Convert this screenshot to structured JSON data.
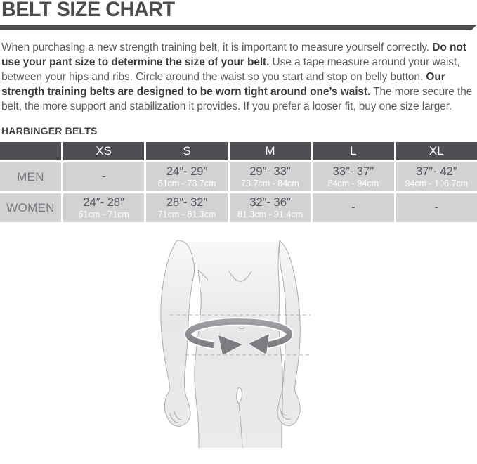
{
  "page": {
    "title": "BELT SIZE CHART"
  },
  "intro": {
    "segments": [
      {
        "bold": false,
        "text": "When purchasing a new strength training belt, it is important to measure yourself correctly. "
      },
      {
        "bold": true,
        "text": "Do not use your pant size to determine the size of your belt."
      },
      {
        "bold": false,
        "text": " Use a tape measure around your waist, between your hips and ribs. Circle around the waist so you start and stop on belly button. "
      },
      {
        "bold": true,
        "text": "Our strength training belts are designed to be worn tight around one’s waist."
      },
      {
        "bold": false,
        "text": " The more secure the belt, the more support and stabilization it provides. If you prefer a looser fit, buy one size larger."
      }
    ]
  },
  "section": {
    "heading": "HARBINGER BELTS"
  },
  "size_table": {
    "columns": [
      "",
      "XS",
      "S",
      "M",
      "L",
      "XL"
    ],
    "rows": [
      {
        "label": "MEN",
        "cells": [
          {
            "inches": "-",
            "cm": ""
          },
          {
            "inches": "24″- 29″",
            "cm": "61cm - 73.7cm"
          },
          {
            "inches": "29″- 33″",
            "cm": "73.7cm - 84cm"
          },
          {
            "inches": "33″- 37″",
            "cm": "84cm - 94cm"
          },
          {
            "inches": "37″- 42″",
            "cm": "94cm - 106.7cm"
          }
        ]
      },
      {
        "label": "WOMEN",
        "cells": [
          {
            "inches": "24″- 28″",
            "cm": "61cm - 71cm"
          },
          {
            "inches": "28″- 32″",
            "cm": "71cm - 81.3cm"
          },
          {
            "inches": "32″- 36″",
            "cm": "81.3cm - 91.4cm"
          },
          {
            "inches": "-",
            "cm": ""
          },
          {
            "inches": "-",
            "cm": ""
          }
        ]
      }
    ]
  },
  "figure": {
    "icon": "waist-measurement-illustration"
  },
  "colors": {
    "heading": "#4a4b4d",
    "rule": "#4a4b4d",
    "table_header_bg": "#4e4f53",
    "table_row_bg": "#d2d2d4",
    "cm_text": "#ffffff",
    "body_fill_top": "#f7f7f8",
    "body_fill_bottom": "#e9e9eb",
    "arrow": "#88898d"
  }
}
